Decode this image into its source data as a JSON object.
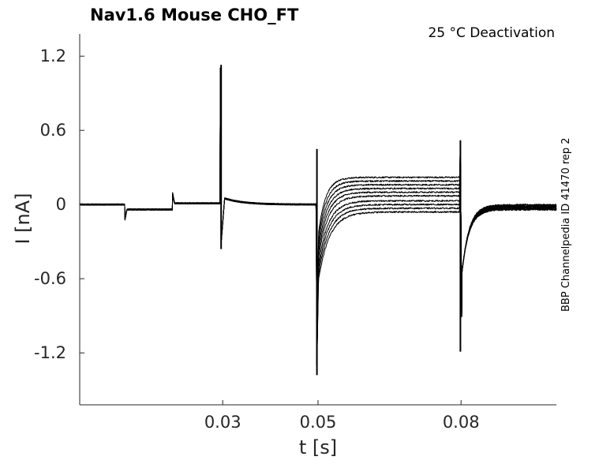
{
  "chart_data": {
    "type": "line",
    "title": "Nav1.6  Mouse  CHO_FT",
    "condition_label": "25 °C  Deactivation",
    "side_label": "BBP Channelpedia ID 41470 rep 2",
    "xlabel": "t [s]",
    "ylabel": "I [nA]",
    "xlim": [
      0,
      0.1
    ],
    "ylim": [
      -1.62,
      1.38
    ],
    "x_ticks": [
      0.03,
      0.05,
      0.08
    ],
    "x_tick_labels": [
      "0.03",
      "0.05",
      "0.08"
    ],
    "y_ticks": [
      1.2,
      0.6,
      0,
      -0.6,
      -1.2
    ],
    "y_tick_labels": [
      "1.2",
      "0.6",
      "0",
      "-0.6",
      "-1.2"
    ],
    "grid": false,
    "line_color": "#000000",
    "protocol": {
      "step1_start": 0.0095,
      "step1_end": 0.0195,
      "test_start": 0.0295,
      "test_end": 0.0496,
      "tail_end": 0.0797
    },
    "series": [
      {
        "tail_level": 0.22,
        "return_level": -0.002
      },
      {
        "tail_level": 0.19,
        "return_level": -0.006
      },
      {
        "tail_level": 0.16,
        "return_level": -0.01
      },
      {
        "tail_level": 0.13,
        "return_level": -0.014
      },
      {
        "tail_level": 0.1,
        "return_level": -0.018
      },
      {
        "tail_level": 0.07,
        "return_level": -0.022
      },
      {
        "tail_level": 0.03,
        "return_level": -0.027
      },
      {
        "tail_level": 0.0,
        "return_level": -0.032
      },
      {
        "tail_level": -0.03,
        "return_level": -0.037
      },
      {
        "tail_level": -0.06,
        "return_level": -0.042
      }
    ]
  }
}
